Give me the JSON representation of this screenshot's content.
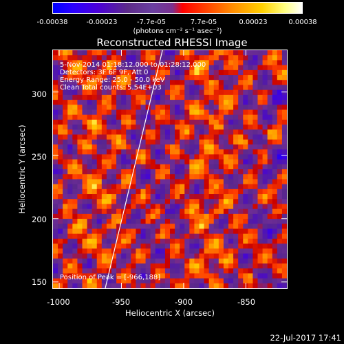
{
  "colorbar": {
    "ticks": [
      "-0.00038",
      "-0.00023",
      "-7.7e-05",
      "7.7e-05",
      "0.00023",
      "0.00038"
    ],
    "units": "(photons cm⁻² s⁻¹ asec⁻²)"
  },
  "chart_data": {
    "type": "heatmap",
    "title": "Reconstructed RHESSI Image",
    "xlabel": "Heliocentric X (arcsec)",
    "ylabel": "Heliocentric Y (arcsec)",
    "xlim": [
      -1005,
      -817
    ],
    "ylim": [
      145,
      333
    ],
    "x_ticks": [
      "-1000",
      "-950",
      "-900",
      "-850"
    ],
    "y_ticks": [
      "150",
      "200",
      "250",
      "300"
    ],
    "x_tick_values": [
      -1000,
      -950,
      -900,
      -850
    ],
    "y_tick_values": [
      150,
      200,
      250,
      300
    ],
    "value_range": [
      -0.00038,
      0.00038
    ],
    "annotations": {
      "time": "5-Nov-2014 01:18:12.000 to 01:28:12.000",
      "detectors": "Detectors: 3F 6F 9F, Att 0",
      "energy": "Energy Range: 25.0 - 50.0 keV",
      "clean": "Clean     Total counts: 5.54E+03",
      "peak": "Position of Peak = [-966,188]"
    },
    "limb_line": {
      "x": [
        -963,
        -917
      ],
      "y": [
        145,
        333
      ]
    },
    "colors": {
      "limb": "#ffffff",
      "background": "#000000"
    }
  },
  "footer": {
    "date": "22-Jul-2017 17:41"
  }
}
